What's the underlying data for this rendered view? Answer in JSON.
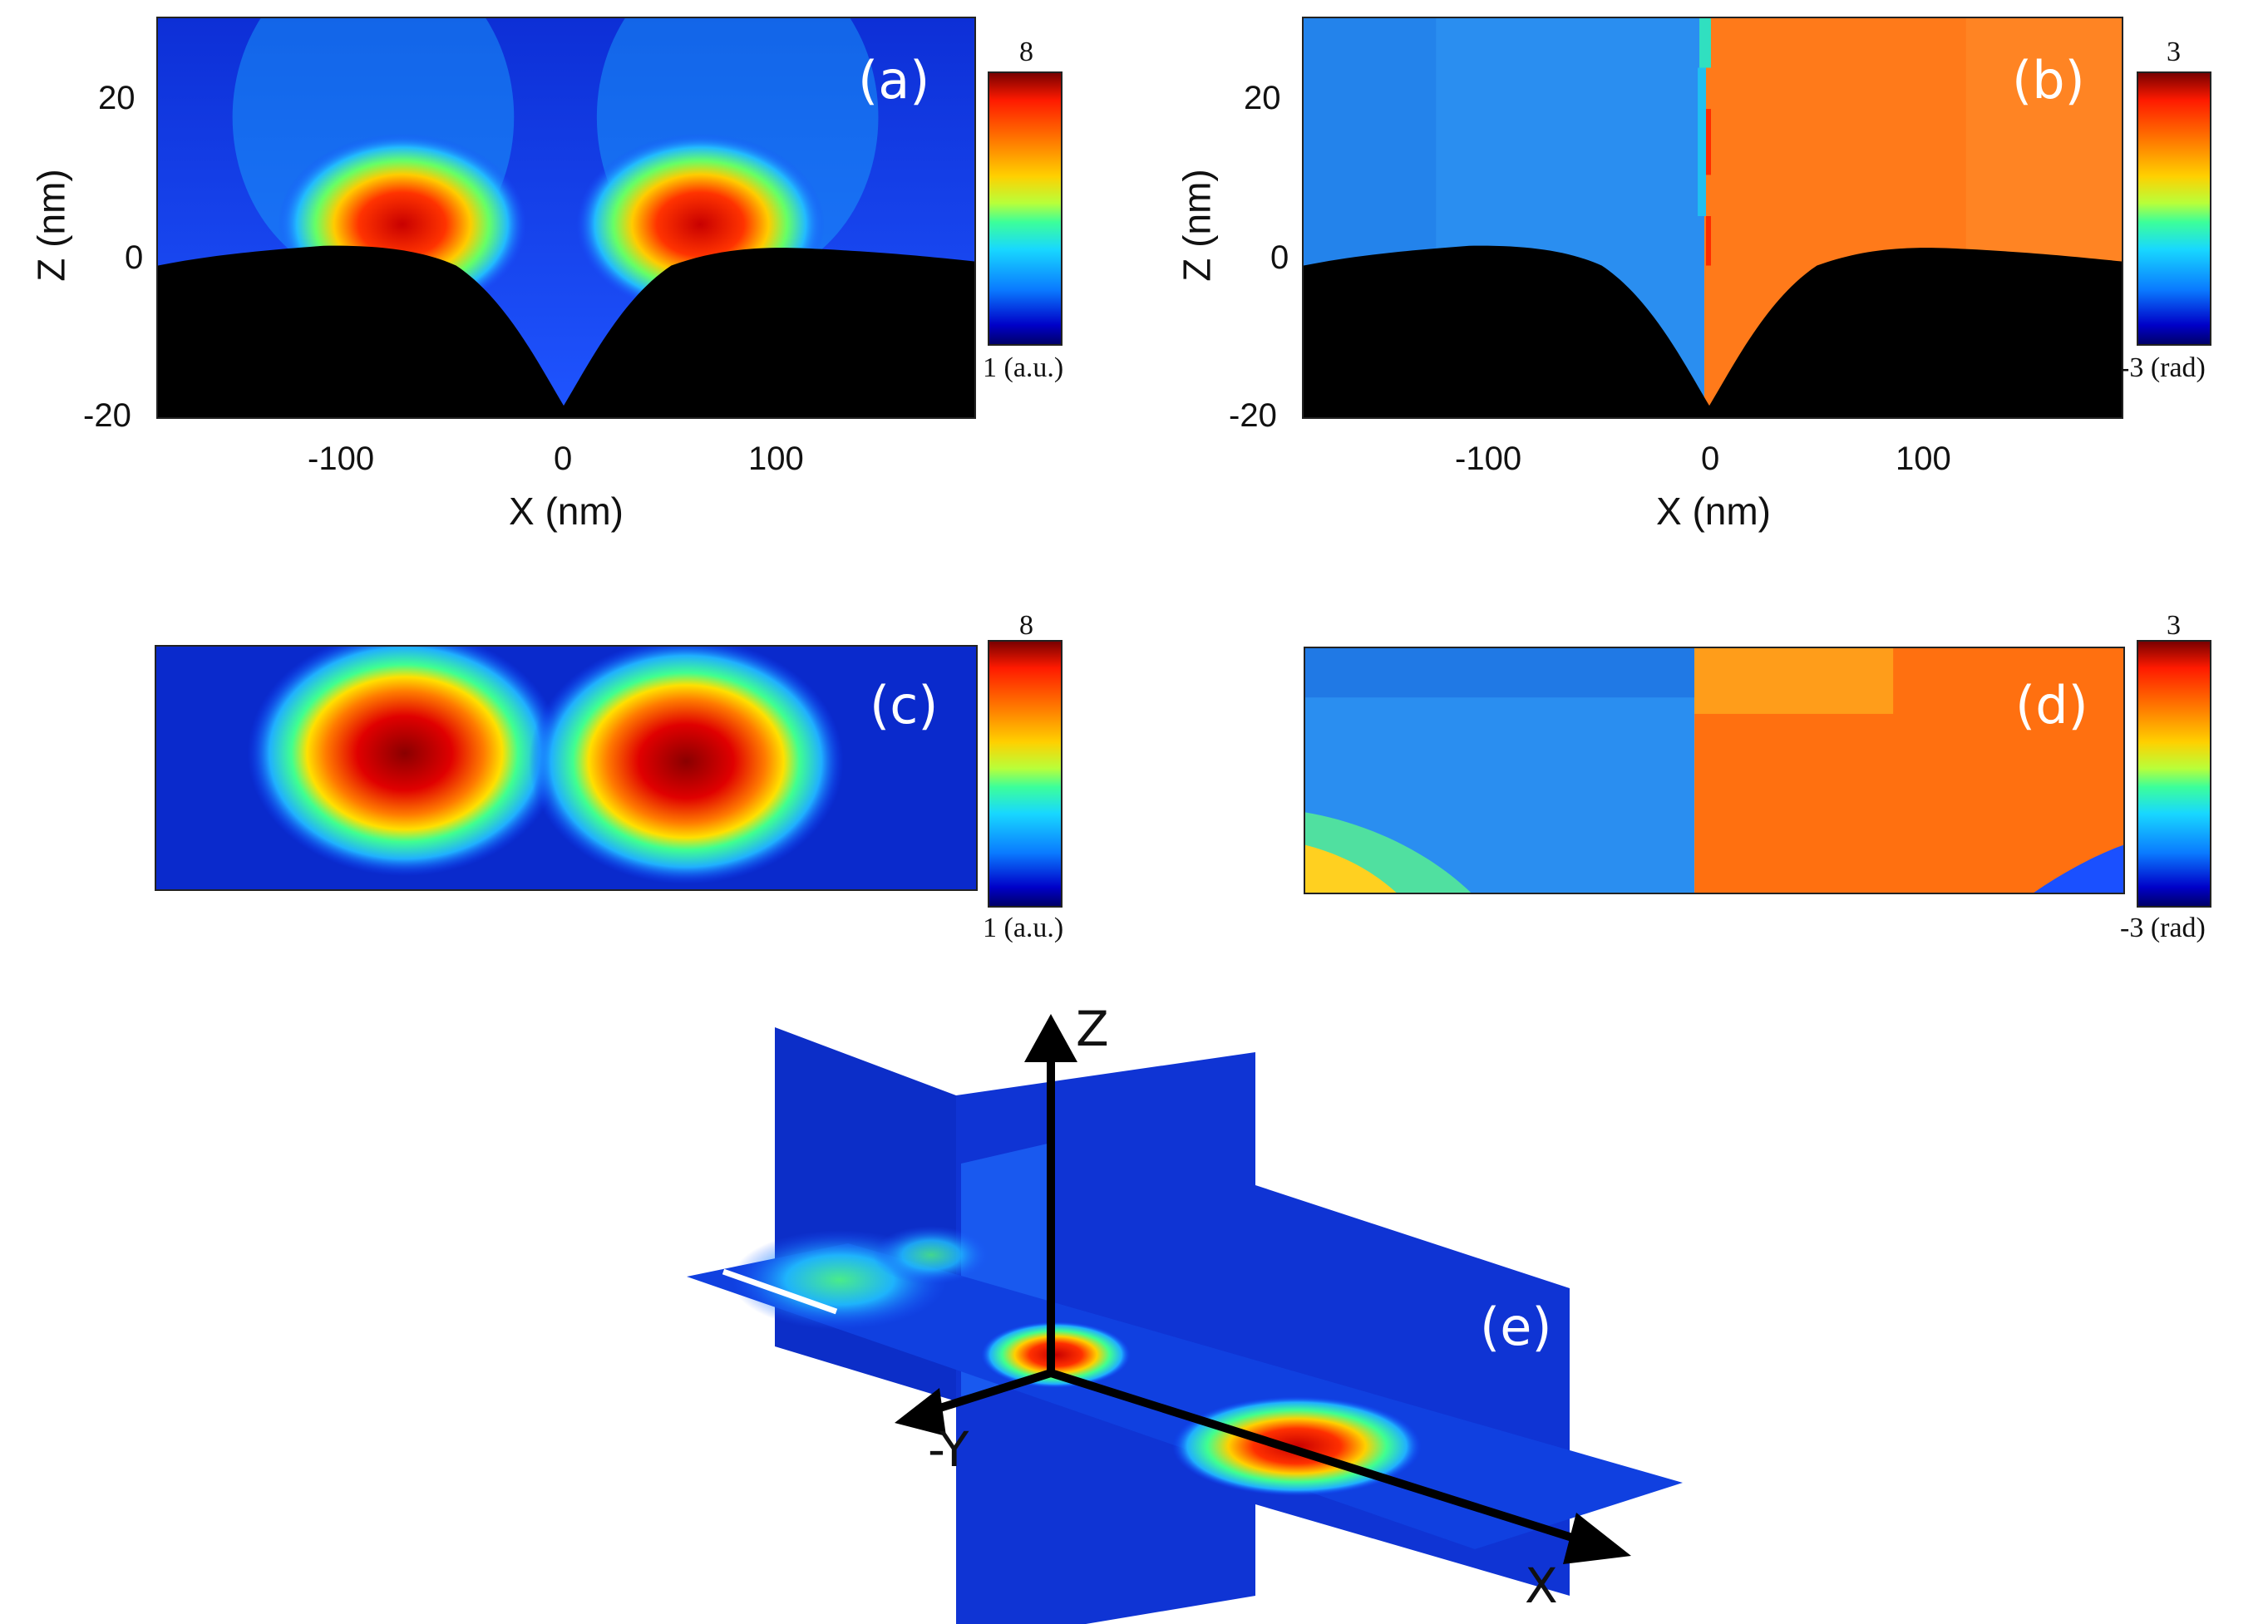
{
  "panels": {
    "a": {
      "label": "(a)",
      "xlabel": "X (nm)",
      "ylabel": "Z (nm)",
      "xticks": [
        "-100",
        "0",
        "100"
      ],
      "yticks": [
        "20",
        "0",
        "-20"
      ],
      "cbar_top": "8",
      "cbar_bottom": "1 (a.u.)"
    },
    "b": {
      "label": "(b)",
      "xlabel": "X (nm)",
      "ylabel": "Z (nm)",
      "xticks": [
        "-100",
        "0",
        "100"
      ],
      "yticks": [
        "20",
        "0",
        "-20"
      ],
      "cbar_top": "3",
      "cbar_bottom": "-3 (rad)"
    },
    "c": {
      "label": "(c)",
      "cbar_top": "8",
      "cbar_bottom": "1 (a.u.)"
    },
    "d": {
      "label": "(d)",
      "cbar_top": "3",
      "cbar_bottom": "-3 (rad)"
    },
    "e": {
      "label": "(e)",
      "axis_z": "Z",
      "axis_y": "-Y",
      "axis_x": "X"
    }
  },
  "colors": {
    "surface": "#000000",
    "background_low": "#0a2acc",
    "phase_left": "#2a8ef0",
    "phase_right": "#ff7a1a",
    "hot": "#cc0000"
  }
}
